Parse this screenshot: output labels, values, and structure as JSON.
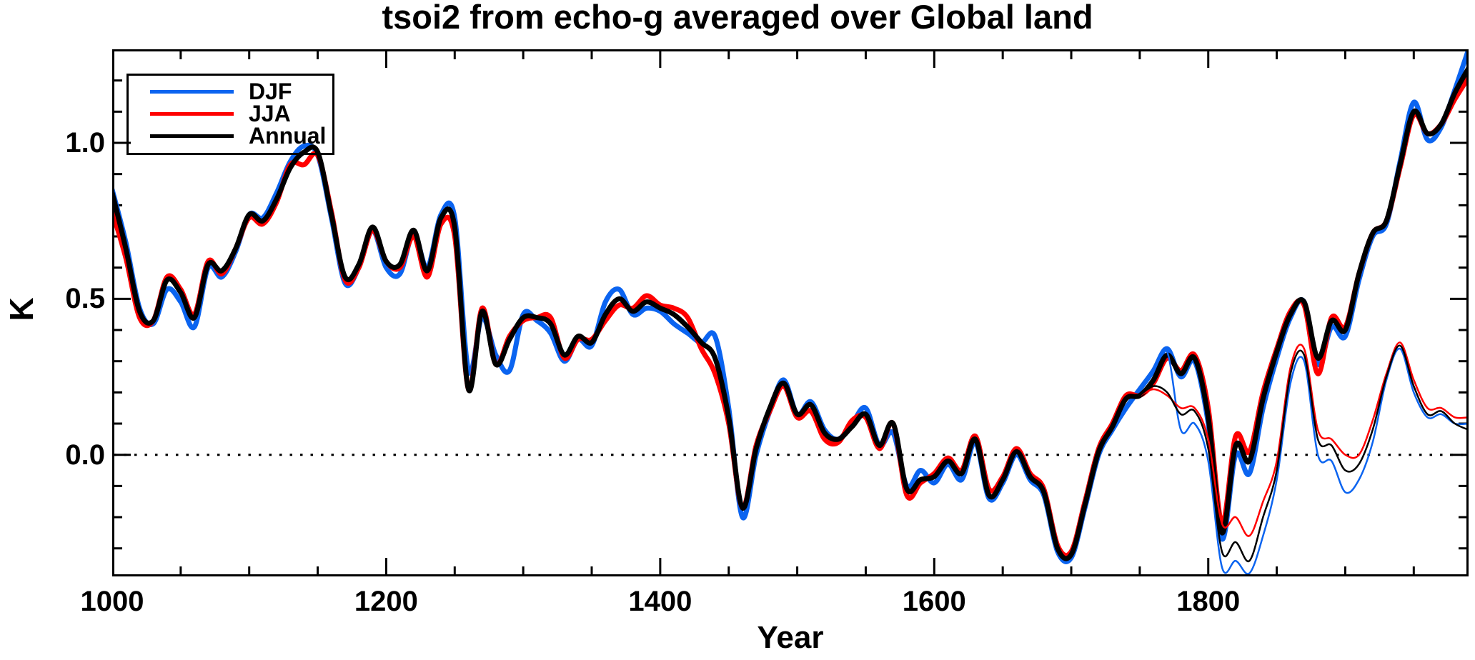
{
  "figure": {
    "title": "tsoi2 from echo-g averaged over Global land",
    "x_axis_label": "Year",
    "y_axis_label": "K"
  },
  "legend": {
    "position": "top-left",
    "items": [
      {
        "label": "DJF"
      },
      {
        "label": "JJA"
      },
      {
        "label": "Annual"
      }
    ]
  },
  "colors": {
    "djf": "#0B64F0",
    "jja": "#FF0000",
    "annual": "#000000",
    "frame": "#000000",
    "background": "#FFFFFF"
  },
  "chart_data": {
    "type": "line",
    "title": "tsoi2 from echo-g averaged over Global land",
    "xlabel": "Year",
    "ylabel": "K",
    "xlim": [
      1000,
      1990
    ],
    "ylim": [
      -0.39,
      1.3
    ],
    "grid": false,
    "zero_line": true,
    "legend_position": "top-left",
    "x_ticks_major": [
      1000,
      1200,
      1400,
      1600,
      1800
    ],
    "x_tick_minor_step": 50,
    "y_ticks_major": [
      {
        "value": 1.0,
        "label": "1.0"
      },
      {
        "value": 0.5,
        "label": "0.5"
      },
      {
        "value": 0.0,
        "label": "0.0"
      }
    ],
    "y_tick_minor_step": 0.1,
    "series": [
      {
        "name": "DJF",
        "color_key": "djf",
        "color": "#0B64F0",
        "stroke_width": 7,
        "in_legend": true,
        "x_start": 1000,
        "x_step": 10,
        "values": [
          0.85,
          0.68,
          0.47,
          0.42,
          0.53,
          0.49,
          0.41,
          0.6,
          0.57,
          0.65,
          0.77,
          0.76,
          0.84,
          0.94,
          0.99,
          0.96,
          0.76,
          0.55,
          0.6,
          0.72,
          0.6,
          0.58,
          0.71,
          0.6,
          0.77,
          0.76,
          0.27,
          0.44,
          0.32,
          0.27,
          0.45,
          0.43,
          0.39,
          0.3,
          0.37,
          0.35,
          0.49,
          0.53,
          0.45,
          0.47,
          0.46,
          0.42,
          0.39,
          0.36,
          0.38,
          0.15,
          -0.2,
          0.0,
          0.14,
          0.24,
          0.13,
          0.17,
          0.08,
          0.05,
          0.1,
          0.15,
          0.03,
          0.07,
          -0.1,
          -0.05,
          -0.09,
          -0.03,
          -0.08,
          0.04,
          -0.14,
          -0.09,
          0.0,
          -0.08,
          -0.13,
          -0.31,
          -0.33,
          -0.17,
          0.0,
          0.08,
          0.15,
          0.21,
          0.27,
          0.34,
          0.25,
          0.3,
          0.1,
          -0.27,
          0.0,
          -0.06,
          0.15,
          0.31,
          0.44,
          0.49,
          0.29,
          0.41,
          0.38,
          0.56,
          0.7,
          0.74,
          0.94,
          1.13,
          1.01,
          1.05,
          1.17,
          1.3
        ]
      },
      {
        "name": "JJA",
        "color_key": "jja",
        "color": "#FF0000",
        "stroke_width": 7,
        "in_legend": true,
        "x_start": 1000,
        "x_step": 10,
        "values": [
          0.78,
          0.63,
          0.44,
          0.43,
          0.57,
          0.53,
          0.45,
          0.62,
          0.58,
          0.66,
          0.76,
          0.74,
          0.81,
          0.93,
          0.93,
          0.96,
          0.78,
          0.56,
          0.6,
          0.72,
          0.62,
          0.6,
          0.7,
          0.57,
          0.74,
          0.7,
          0.21,
          0.47,
          0.29,
          0.38,
          0.43,
          0.44,
          0.44,
          0.31,
          0.37,
          0.37,
          0.43,
          0.48,
          0.47,
          0.51,
          0.48,
          0.47,
          0.44,
          0.34,
          0.26,
          0.1,
          -0.17,
          0.03,
          0.14,
          0.22,
          0.12,
          0.14,
          0.05,
          0.04,
          0.11,
          0.12,
          0.02,
          0.1,
          -0.13,
          -0.09,
          -0.06,
          -0.01,
          -0.05,
          0.06,
          -0.11,
          -0.07,
          0.02,
          -0.06,
          -0.11,
          -0.29,
          -0.31,
          -0.15,
          0.02,
          0.1,
          0.19,
          0.19,
          0.23,
          0.31,
          0.27,
          0.32,
          0.15,
          -0.22,
          0.06,
          0.01,
          0.2,
          0.34,
          0.46,
          0.48,
          0.26,
          0.44,
          0.41,
          0.58,
          0.71,
          0.75,
          0.92,
          1.09,
          1.03,
          1.06,
          1.14,
          1.21
        ]
      },
      {
        "name": "Annual",
        "color_key": "annual",
        "color": "#000000",
        "stroke_width": 7,
        "in_legend": true,
        "x_start": 1000,
        "x_step": 10,
        "values": [
          0.84,
          0.66,
          0.46,
          0.43,
          0.56,
          0.52,
          0.44,
          0.61,
          0.59,
          0.66,
          0.77,
          0.75,
          0.82,
          0.92,
          0.97,
          0.97,
          0.77,
          0.57,
          0.61,
          0.73,
          0.62,
          0.61,
          0.72,
          0.59,
          0.76,
          0.73,
          0.21,
          0.46,
          0.29,
          0.37,
          0.44,
          0.44,
          0.42,
          0.32,
          0.38,
          0.36,
          0.45,
          0.5,
          0.46,
          0.49,
          0.47,
          0.45,
          0.41,
          0.36,
          0.31,
          0.12,
          -0.17,
          0.02,
          0.15,
          0.23,
          0.13,
          0.16,
          0.07,
          0.05,
          0.09,
          0.13,
          0.03,
          0.1,
          -0.11,
          -0.08,
          -0.07,
          -0.02,
          -0.06,
          0.05,
          -0.13,
          -0.08,
          0.01,
          -0.07,
          -0.12,
          -0.3,
          -0.32,
          -0.16,
          0.01,
          0.09,
          0.18,
          0.19,
          0.24,
          0.32,
          0.26,
          0.31,
          0.12,
          -0.25,
          0.03,
          -0.02,
          0.18,
          0.33,
          0.45,
          0.49,
          0.31,
          0.43,
          0.4,
          0.58,
          0.71,
          0.75,
          0.93,
          1.1,
          1.03,
          1.06,
          1.16,
          1.24
        ]
      },
      {
        "name": "DJF (thin, unlabeled)",
        "color_key": "djf",
        "color": "#0B64F0",
        "stroke_width": 2.5,
        "in_legend": false,
        "x_start": 1750,
        "x_step": 10,
        "values": [
          0.21,
          0.27,
          0.33,
          0.08,
          0.1,
          -0.02,
          -0.36,
          -0.34,
          -0.38,
          -0.26,
          -0.08,
          0.23,
          0.3,
          0.0,
          -0.02,
          -0.12,
          -0.08,
          0.04,
          0.24,
          0.34,
          0.2,
          0.12,
          0.13,
          0.1,
          0.1
        ]
      },
      {
        "name": "JJA (thin, unlabeled)",
        "color_key": "jja",
        "color": "#FF0000",
        "stroke_width": 2.5,
        "in_legend": false,
        "x_start": 1750,
        "x_step": 10,
        "values": [
          0.19,
          0.21,
          0.19,
          0.15,
          0.15,
          0.05,
          -0.22,
          -0.2,
          -0.26,
          -0.15,
          -0.02,
          0.28,
          0.34,
          0.08,
          0.05,
          0.0,
          0.0,
          0.11,
          0.26,
          0.36,
          0.24,
          0.15,
          0.15,
          0.12,
          0.12
        ]
      },
      {
        "name": "Annual (thin, unlabeled)",
        "color_key": "annual",
        "color": "#000000",
        "stroke_width": 2.5,
        "in_legend": false,
        "x_start": 1750,
        "x_step": 10,
        "values": [
          0.19,
          0.22,
          0.2,
          0.13,
          0.14,
          0.02,
          -0.31,
          -0.28,
          -0.34,
          -0.2,
          -0.05,
          0.26,
          0.32,
          0.05,
          0.03,
          -0.05,
          -0.03,
          0.08,
          0.25,
          0.35,
          0.22,
          0.13,
          0.14,
          0.1,
          0.08
        ]
      }
    ]
  }
}
